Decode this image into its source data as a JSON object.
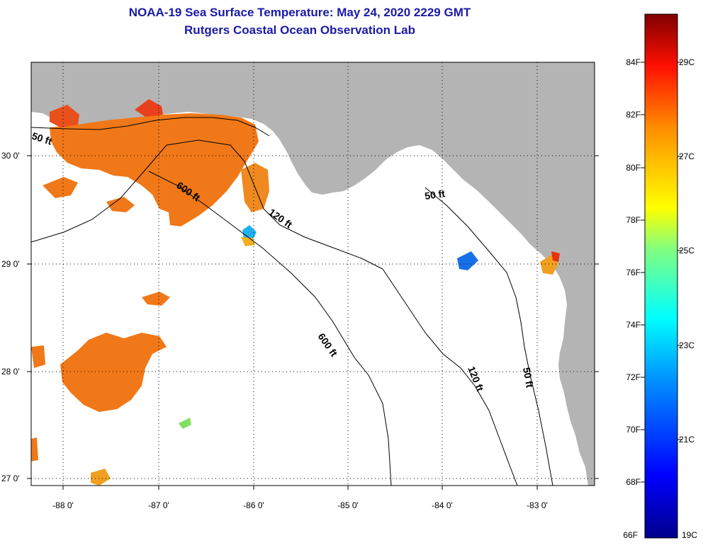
{
  "header": {
    "title": "NOAA-19 Sea Surface Temperature:  May 24, 2020 2229 GMT",
    "subtitle": "Rutgers Coastal Ocean Observation Lab"
  },
  "map": {
    "lat_labels": [
      "30 0'",
      "29 0'",
      "28 0'",
      "27 0'"
    ],
    "lon_labels": [
      "-88 0'",
      "-87 0'",
      "-86 0'",
      "-85 0'",
      "-84 0'",
      "-83 0'"
    ],
    "contour_labels": [
      "50 ft",
      "600 ft",
      "120 ft",
      "50 ft",
      "600 ft",
      "120 ft",
      "50 ft"
    ],
    "colors": {
      "land": "#b4b4b4",
      "water": "#ffffff",
      "sst_warm": "#f07818"
    }
  },
  "colorbar": {
    "fahrenheit_labels": [
      "84F",
      "82F",
      "80F",
      "78F",
      "76F",
      "74F",
      "72F",
      "70F",
      "68F",
      "66F"
    ],
    "celsius_labels": [
      "29C",
      "27C",
      "25C",
      "23C",
      "21C",
      "19C"
    ]
  }
}
